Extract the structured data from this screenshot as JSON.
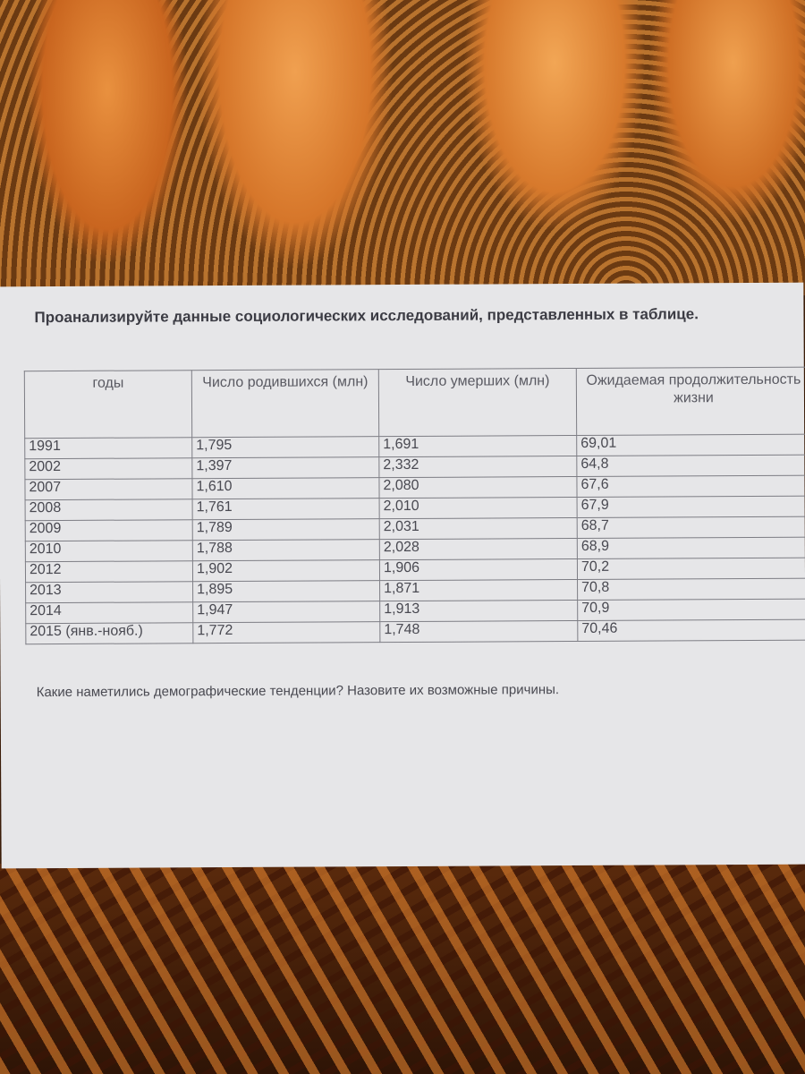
{
  "title": "Проанализируйте данные социологических исследований, представленных в таблице.",
  "table": {
    "headers": [
      "годы",
      "Число родившихся (млн)",
      "Число умерших (млн)",
      "Ожидаемая продолжительность жизни"
    ],
    "rows": [
      [
        "1991",
        "1,795",
        "1,691",
        "69,01"
      ],
      [
        "2002",
        "1,397",
        "2,332",
        "64,8"
      ],
      [
        "2007",
        "1,610",
        "2,080",
        "67,6"
      ],
      [
        "2008",
        "1,761",
        "2,010",
        "67,9"
      ],
      [
        "2009",
        "1,789",
        "2,031",
        "68,7"
      ],
      [
        "2010",
        "1,788",
        "2,028",
        "68,9"
      ],
      [
        "2012",
        "1,902",
        "1,906",
        "70,2"
      ],
      [
        "2013",
        "1,895",
        "1,871",
        "70,8"
      ],
      [
        "2014",
        "1,947",
        "1,913",
        "70,9"
      ],
      [
        "2015 (янв.-нояб.)",
        "1,772",
        "1,748",
        "70,46"
      ]
    ]
  },
  "question": "Какие наметились демографические тенденции?  Назовите их возможные причины."
}
